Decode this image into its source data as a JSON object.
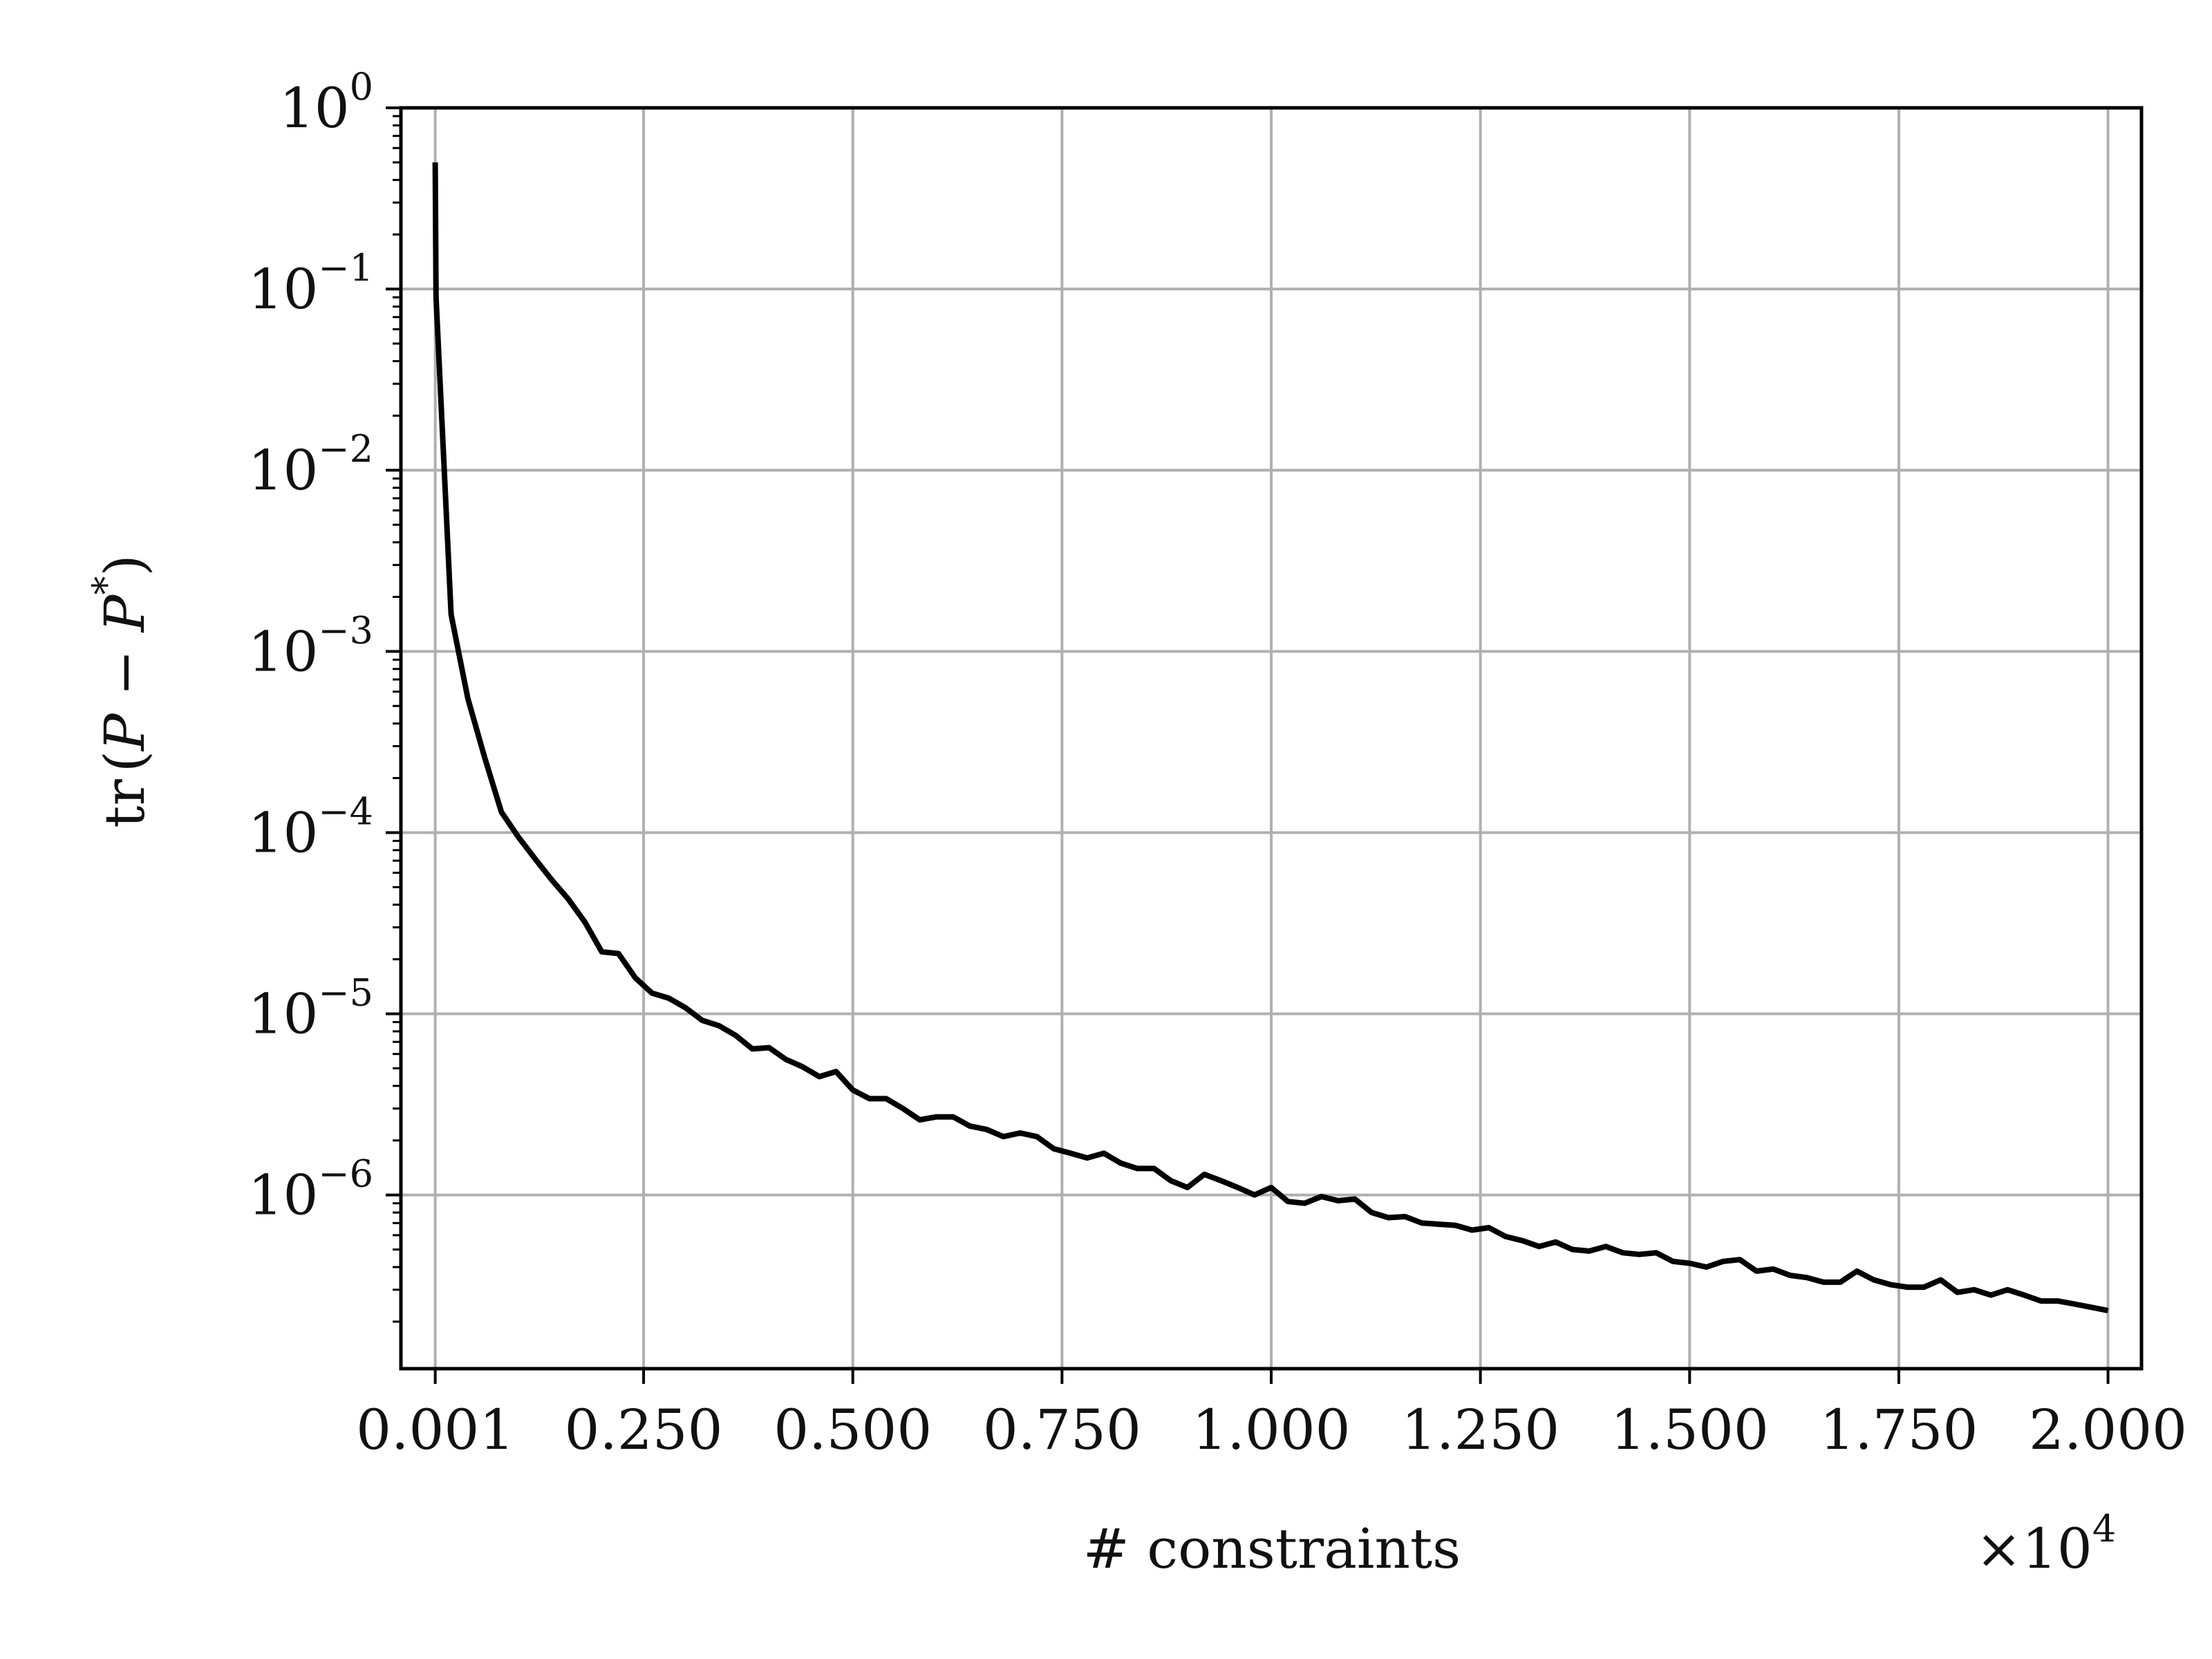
{
  "chart_data": {
    "type": "line",
    "title": "",
    "xlabel": "# constraints",
    "ylabel_parts": {
      "pre": "tr",
      "open": "(",
      "p1": "P",
      "minus": " − ",
      "p2": "P",
      "star": "*",
      "close": ")"
    },
    "x_multiplier": {
      "times": "×10",
      "exp": "4"
    },
    "x_scale": "linear",
    "y_scale": "log",
    "xlim": [
      -0.04,
      2.04
    ],
    "ylim": [
      1.1e-07,
      1.0
    ],
    "grid": true,
    "line_color": "#000000",
    "grid_color": "#b0b0b0",
    "x_ticks": [
      {
        "value": 0.001,
        "label": "0.001"
      },
      {
        "value": 0.25,
        "label": "0.250"
      },
      {
        "value": 0.5,
        "label": "0.500"
      },
      {
        "value": 0.75,
        "label": "0.750"
      },
      {
        "value": 1.0,
        "label": "1.000"
      },
      {
        "value": 1.25,
        "label": "1.250"
      },
      {
        "value": 1.5,
        "label": "1.500"
      },
      {
        "value": 1.75,
        "label": "1.750"
      },
      {
        "value": 2.0,
        "label": "2.000"
      }
    ],
    "y_ticks": [
      {
        "value": 1,
        "base": "10",
        "exp": "0"
      },
      {
        "value": 0.1,
        "base": "10",
        "exp": "−1"
      },
      {
        "value": 0.01,
        "base": "10",
        "exp": "−2"
      },
      {
        "value": 0.001,
        "base": "10",
        "exp": "−3"
      },
      {
        "value": 0.0001,
        "base": "10",
        "exp": "−4"
      },
      {
        "value": 1e-05,
        "base": "10",
        "exp": "−5"
      },
      {
        "value": 1e-06,
        "base": "10",
        "exp": "−6"
      }
    ],
    "series": [
      {
        "x": [
          0.001,
          0.002,
          0.02,
          0.04,
          0.06,
          0.08,
          0.1,
          0.12,
          0.14,
          0.16,
          0.18,
          0.2,
          0.22,
          0.24,
          0.26,
          0.28,
          0.3,
          0.32,
          0.34,
          0.36,
          0.38,
          0.4,
          0.42,
          0.44,
          0.46,
          0.48,
          0.5,
          0.52,
          0.54,
          0.56,
          0.58,
          0.6,
          0.62,
          0.64,
          0.66,
          0.68,
          0.7,
          0.72,
          0.74,
          0.76,
          0.78,
          0.8,
          0.82,
          0.84,
          0.86,
          0.88,
          0.9,
          0.92,
          0.94,
          0.96,
          0.98,
          1.0,
          1.02,
          1.04,
          1.06,
          1.08,
          1.1,
          1.12,
          1.14,
          1.16,
          1.18,
          1.2,
          1.22,
          1.24,
          1.26,
          1.28,
          1.3,
          1.32,
          1.34,
          1.36,
          1.38,
          1.4,
          1.42,
          1.44,
          1.46,
          1.48,
          1.5,
          1.52,
          1.54,
          1.56,
          1.58,
          1.6,
          1.62,
          1.64,
          1.66,
          1.68,
          1.7,
          1.72,
          1.74,
          1.76,
          1.78,
          1.8,
          1.82,
          1.84,
          1.86,
          1.88,
          1.9,
          1.92,
          1.94,
          1.96,
          1.98,
          2.0
        ],
        "y": [
          0.5,
          0.09,
          0.0016,
          0.00055,
          0.00026,
          0.00013,
          9.5e-05,
          7.2e-05,
          5.5e-05,
          4.3e-05,
          3.2e-05,
          2.2e-05,
          2.15e-05,
          1.58e-05,
          1.3e-05,
          1.22e-05,
          1.08e-05,
          9.2e-06,
          8.6e-06,
          7.6e-06,
          6.4e-06,
          6.5e-06,
          5.6e-06,
          5.1e-06,
          4.5e-06,
          4.8e-06,
          3.8e-06,
          3.4e-06,
          3.4e-06,
          3e-06,
          2.6e-06,
          2.7e-06,
          2.7e-06,
          2.4e-06,
          2.3e-06,
          2.1e-06,
          2.2e-06,
          2.1e-06,
          1.8e-06,
          1.7e-06,
          1.6e-06,
          1.7e-06,
          1.5e-06,
          1.4e-06,
          1.4e-06,
          1.2e-06,
          1.1e-06,
          1.3e-06,
          1.2e-06,
          1.1e-06,
          1e-06,
          1.1e-06,
          9.2e-07,
          9e-07,
          9.8e-07,
          9.3e-07,
          9.5e-07,
          8e-07,
          7.5e-07,
          7.6e-07,
          7e-07,
          6.9e-07,
          6.8e-07,
          6.4e-07,
          6.6e-07,
          5.9e-07,
          5.6e-07,
          5.2e-07,
          5.5e-07,
          5e-07,
          4.9e-07,
          5.2e-07,
          4.8e-07,
          4.7e-07,
          4.8e-07,
          4.3e-07,
          4.2e-07,
          4e-07,
          4.3e-07,
          4.4e-07,
          3.8e-07,
          3.9e-07,
          3.6e-07,
          3.5e-07,
          3.3e-07,
          3.3e-07,
          3.8e-07,
          3.4e-07,
          3.2e-07,
          3.1e-07,
          3.1e-07,
          3.4e-07,
          2.9e-07,
          3e-07,
          2.8e-07,
          3e-07,
          2.8e-07,
          2.6e-07,
          2.6e-07,
          2.5e-07,
          2.4e-07,
          2.3e-07
        ]
      }
    ]
  }
}
